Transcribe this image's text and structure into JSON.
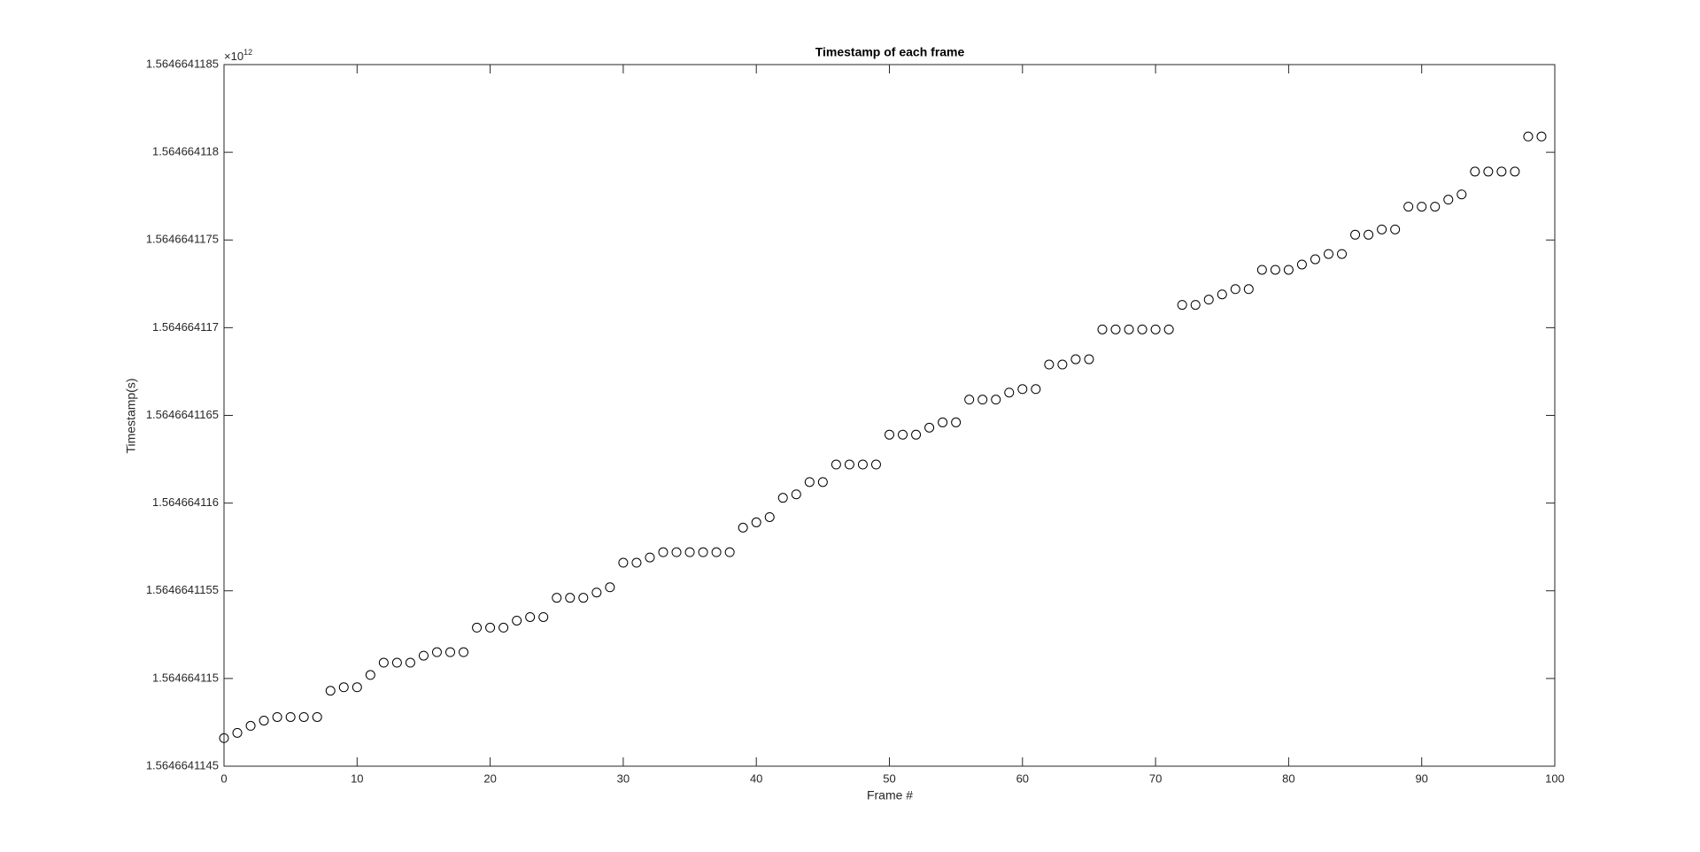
{
  "chart_data": {
    "type": "scatter",
    "title": "Timestamp of each frame",
    "xlabel": "Frame #",
    "ylabel": "Timestamp(s)",
    "y_multiplier": {
      "base": "×10",
      "exponent": "12"
    },
    "color": "#000000",
    "x": [
      0,
      1,
      2,
      3,
      4,
      5,
      6,
      7,
      8,
      9,
      10,
      11,
      12,
      13,
      14,
      15,
      16,
      17,
      18,
      19,
      20,
      21,
      22,
      23,
      24,
      25,
      26,
      27,
      28,
      29,
      30,
      31,
      32,
      33,
      34,
      35,
      36,
      37,
      38,
      39,
      40,
      41,
      42,
      43,
      44,
      45,
      46,
      47,
      48,
      49,
      50,
      51,
      52,
      53,
      54,
      55,
      56,
      57,
      58,
      59,
      60,
      61,
      62,
      63,
      64,
      65,
      66,
      67,
      68,
      69,
      70,
      71,
      72,
      73,
      74,
      75,
      76,
      77,
      78,
      79,
      80,
      81,
      82,
      83,
      84,
      85,
      86,
      87,
      88,
      89,
      90,
      91,
      92,
      93,
      94,
      95,
      96,
      97,
      98,
      99
    ],
    "values": [
      1.56466411466,
      1.56466411469,
      1.56466411473,
      1.56466411476,
      1.56466411478,
      1.56466411478,
      1.56466411478,
      1.56466411478,
      1.56466411493,
      1.56466411495,
      1.56466411495,
      1.56466411502,
      1.56466411509,
      1.56466411509,
      1.56466411509,
      1.56466411513,
      1.56466411515,
      1.56466411515,
      1.56466411515,
      1.56466411529,
      1.56466411529,
      1.56466411529,
      1.56466411533,
      1.56466411535,
      1.56466411535,
      1.56466411546,
      1.56466411546,
      1.56466411546,
      1.56466411549,
      1.56466411552,
      1.56466411566,
      1.56466411566,
      1.56466411569,
      1.56466411572,
      1.56466411572,
      1.56466411572,
      1.56466411572,
      1.56466411572,
      1.56466411572,
      1.56466411586,
      1.56466411589,
      1.56466411592,
      1.56466411603,
      1.56466411605,
      1.56466411612,
      1.56466411612,
      1.56466411622,
      1.56466411622,
      1.56466411622,
      1.56466411622,
      1.56466411639,
      1.56466411639,
      1.56466411639,
      1.56466411643,
      1.56466411646,
      1.56466411646,
      1.56466411659,
      1.56466411659,
      1.56466411659,
      1.56466411663,
      1.56466411665,
      1.56466411665,
      1.56466411679,
      1.56466411679,
      1.56466411682,
      1.56466411682,
      1.56466411699,
      1.56466411699,
      1.56466411699,
      1.56466411699,
      1.56466411699,
      1.56466411699,
      1.56466411713,
      1.56466411713,
      1.56466411716,
      1.56466411719,
      1.56466411722,
      1.56466411722,
      1.56466411733,
      1.56466411733,
      1.56466411733,
      1.56466411736,
      1.56466411739,
      1.56466411742,
      1.56466411742,
      1.56466411753,
      1.56466411753,
      1.56466411756,
      1.56466411756,
      1.56466411769,
      1.56466411769,
      1.56466411769,
      1.56466411773,
      1.56466411776,
      1.56466411789,
      1.56466411789,
      1.56466411789,
      1.56466411789,
      1.56466411809,
      1.56466411809
    ],
    "xlim": [
      0,
      100
    ],
    "xticks": [
      0,
      10,
      20,
      30,
      40,
      50,
      60,
      70,
      80,
      90,
      100
    ],
    "ylim": [
      1.5646641145,
      1.5646641185
    ],
    "yticks": [
      1.5646641145,
      1.564664115,
      1.5646641155,
      1.564664116,
      1.5646641165,
      1.564664117,
      1.5646641175,
      1.564664118,
      1.5646641185
    ]
  }
}
